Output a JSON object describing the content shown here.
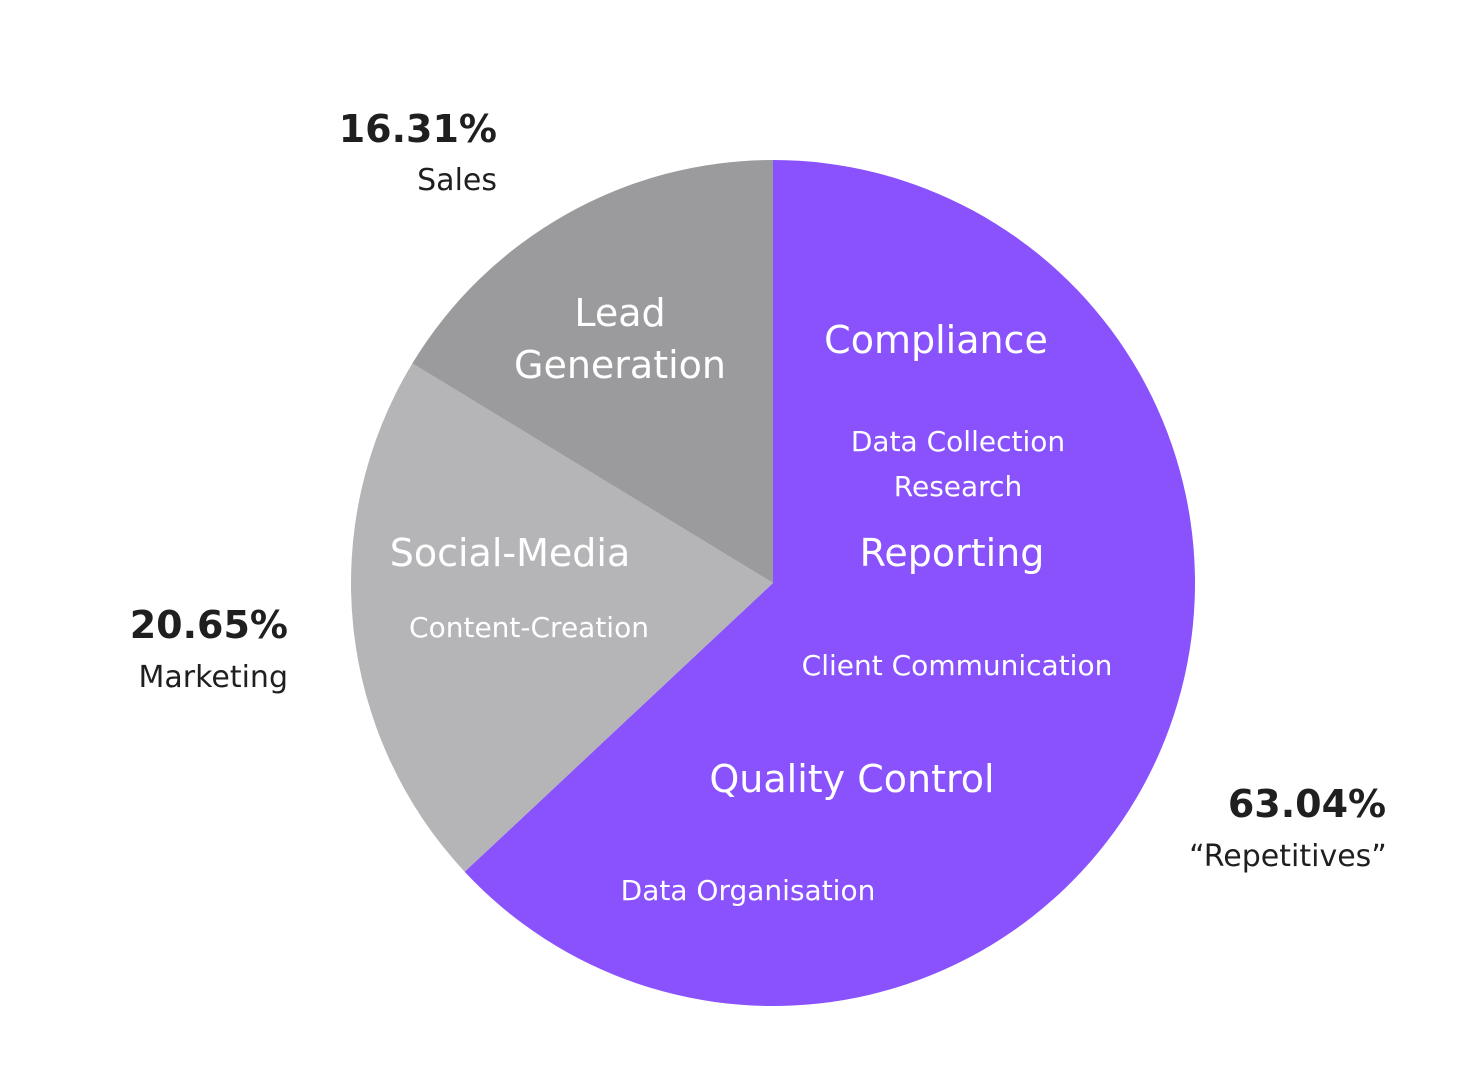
{
  "chart_data": {
    "type": "pie",
    "slices": [
      {
        "label": "“Repetitives”",
        "value": 63.04,
        "value_label": "63.04%",
        "color": "#8a52fd",
        "items": [
          "Compliance",
          "Data Collection",
          "Research",
          "Reporting",
          "Client Communication",
          "Quality Control",
          "Data Organisation"
        ]
      },
      {
        "label": "Marketing",
        "value": 20.65,
        "value_label": "20.65%",
        "color": "#b5b5b8",
        "items": [
          "Social-Media",
          "Content-Creation"
        ]
      },
      {
        "label": "Sales",
        "value": 16.31,
        "value_label": "16.31%",
        "color": "#9b9b9e",
        "items": [
          "Lead",
          "Generation"
        ]
      }
    ],
    "start_angle_deg": 0,
    "direction": "clockwise",
    "legend": "none"
  }
}
